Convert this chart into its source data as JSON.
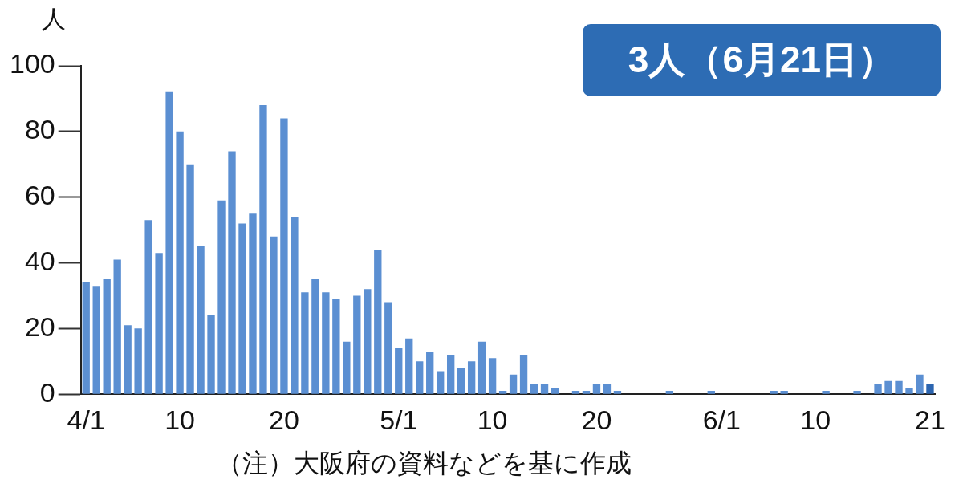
{
  "chart_data": {
    "type": "bar",
    "ylabel": "人",
    "categories": [
      "4/1",
      null,
      null,
      null,
      null,
      null,
      null,
      null,
      null,
      "10",
      null,
      null,
      null,
      null,
      null,
      null,
      null,
      null,
      null,
      "20",
      null,
      null,
      null,
      null,
      null,
      null,
      null,
      null,
      null,
      null,
      "5/1",
      null,
      null,
      null,
      null,
      null,
      null,
      null,
      null,
      "10",
      null,
      null,
      null,
      null,
      null,
      null,
      null,
      null,
      null,
      "20",
      null,
      null,
      null,
      null,
      null,
      null,
      null,
      null,
      null,
      null,
      null,
      "6/1",
      null,
      null,
      null,
      null,
      null,
      null,
      null,
      null,
      "10",
      null,
      null,
      null,
      null,
      null,
      null,
      null,
      null,
      null,
      null,
      "21"
    ],
    "values": [
      34,
      33,
      35,
      41,
      21,
      20,
      53,
      43,
      92,
      80,
      70,
      45,
      24,
      59,
      74,
      52,
      55,
      88,
      48,
      84,
      54,
      31,
      35,
      31,
      29,
      16,
      30,
      32,
      44,
      28,
      14,
      17,
      10,
      13,
      7,
      12,
      8,
      10,
      16,
      11,
      1,
      6,
      12,
      3,
      3,
      2,
      0,
      1,
      1,
      3,
      3,
      1,
      0,
      0,
      0,
      0,
      1,
      0,
      0,
      0,
      1,
      0,
      0,
      0,
      0,
      0,
      1,
      1,
      0,
      0,
      0,
      1,
      0,
      0,
      1,
      0,
      3,
      4,
      4,
      2,
      6,
      3
    ],
    "colors": [
      "#5b8fd2",
      "#5b8fd2",
      "#5b8fd2",
      "#5b8fd2",
      "#5b8fd2",
      "#5b8fd2",
      "#5b8fd2",
      "#5b8fd2",
      "#5b8fd2",
      "#5b8fd2",
      "#5b8fd2",
      "#5b8fd2",
      "#5b8fd2",
      "#5b8fd2",
      "#5b8fd2",
      "#5b8fd2",
      "#5b8fd2",
      "#5b8fd2",
      "#5b8fd2",
      "#5b8fd2",
      "#5b8fd2",
      "#5b8fd2",
      "#5b8fd2",
      "#5b8fd2",
      "#5b8fd2",
      "#5b8fd2",
      "#5b8fd2",
      "#5b8fd2",
      "#5b8fd2",
      "#5b8fd2",
      "#5b8fd2",
      "#5b8fd2",
      "#5b8fd2",
      "#5b8fd2",
      "#5b8fd2",
      "#5b8fd2",
      "#5b8fd2",
      "#5b8fd2",
      "#5b8fd2",
      "#5b8fd2",
      "#5b8fd2",
      "#5b8fd2",
      "#5b8fd2",
      "#5b8fd2",
      "#5b8fd2",
      "#5b8fd2",
      "#5b8fd2",
      "#5b8fd2",
      "#5b8fd2",
      "#5b8fd2",
      "#5b8fd2",
      "#5b8fd2",
      "#5b8fd2",
      "#5b8fd2",
      "#5b8fd2",
      "#5b8fd2",
      "#5b8fd2",
      "#5b8fd2",
      "#5b8fd2",
      "#5b8fd2",
      "#5b8fd2",
      "#5b8fd2",
      "#5b8fd2",
      "#5b8fd2",
      "#5b8fd2",
      "#5b8fd2",
      "#5b8fd2",
      "#5b8fd2",
      "#5b8fd2",
      "#5b8fd2",
      "#5b8fd2",
      "#5b8fd2",
      "#5b8fd2",
      "#5b8fd2",
      "#5b8fd2",
      "#5b8fd2",
      "#5b8fd2",
      "#5b8fd2",
      "#5b8fd2",
      "#5b8fd2",
      "#5b8fd2",
      "#2c65b0"
    ],
    "ylim": [
      0,
      100
    ],
    "yticks": [
      0,
      20,
      40,
      60,
      80,
      100
    ],
    "grid": false,
    "legend": false,
    "annotations": [
      "3人（6月21日）",
      "（注）大阪府の資料などを基に作成"
    ]
  }
}
